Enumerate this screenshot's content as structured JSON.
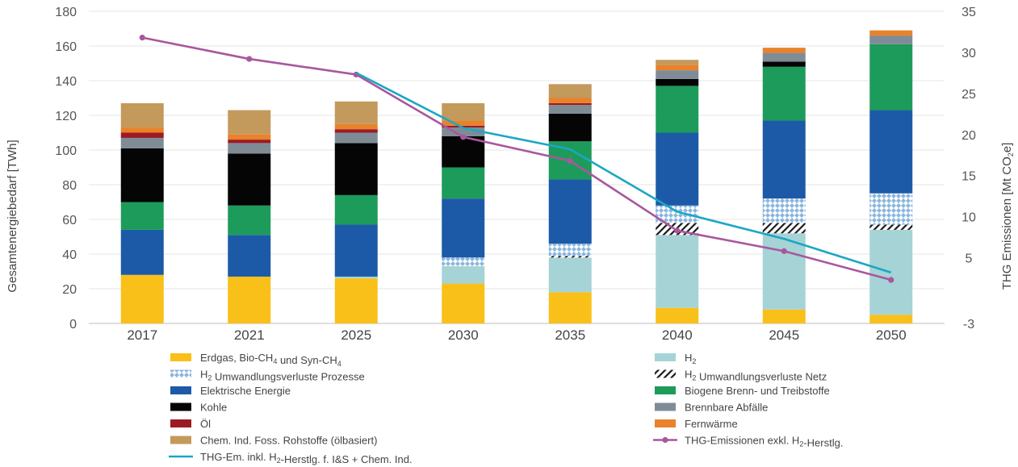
{
  "chart_data": {
    "type": "bar",
    "stacked": true,
    "categories": [
      "2017",
      "2021",
      "2025",
      "2030",
      "2035",
      "2040",
      "2045",
      "2050"
    ],
    "ylabel": "Gesamtenergiebedarf [TWh]",
    "ylim": [
      0,
      180
    ],
    "yticks": [
      0,
      20,
      40,
      60,
      80,
      100,
      120,
      140,
      160,
      180
    ],
    "y2label": "THG Emissionen [Mt CO2e]",
    "y2lim": [
      -3,
      35
    ],
    "y2ticks": [
      -3,
      5,
      10,
      15,
      20,
      25,
      30,
      35
    ],
    "y2ticklabels": [
      "-3",
      "5",
      "10",
      "15",
      "20",
      "25",
      "30",
      "35"
    ],
    "grid": true,
    "legend_position": "bottom",
    "series": [
      {
        "name": "Erdgas, Bio-CH4 und Syn-CH4",
        "color": "#F9C01A",
        "pattern": "solid",
        "values": [
          28,
          27,
          26,
          23,
          18,
          9,
          8,
          5
        ]
      },
      {
        "name": "H2",
        "color": "#A6D3D6",
        "pattern": "solid",
        "values": [
          0,
          0,
          1,
          10,
          20,
          42,
          44,
          49
        ]
      },
      {
        "name": "H2 Umwandlungsverluste Netz",
        "color": "#1a1a1a",
        "pattern": "hatch",
        "values": [
          0,
          0,
          0,
          0,
          1,
          7,
          6,
          3
        ]
      },
      {
        "name": "H2 Umwandlungsverluste Prozesse",
        "color": "#8AB6DD",
        "pattern": "dots",
        "values": [
          0,
          0,
          0,
          5,
          7,
          10,
          14,
          18
        ]
      },
      {
        "name": "Elektrische Energie",
        "color": "#1C5AA8",
        "pattern": "solid",
        "values": [
          26,
          24,
          30,
          34,
          37,
          42,
          45,
          48
        ]
      },
      {
        "name": "Biogene Brenn- und Treibstoffe",
        "color": "#1D9B5A",
        "pattern": "solid",
        "values": [
          16,
          17,
          17,
          18,
          22,
          27,
          31,
          38
        ]
      },
      {
        "name": "Kohle",
        "color": "#050505",
        "pattern": "solid",
        "values": [
          31,
          30,
          30,
          18,
          16,
          4,
          3,
          0
        ]
      },
      {
        "name": "Brennbare Abfälle",
        "color": "#7F8C96",
        "pattern": "solid",
        "values": [
          6,
          6,
          6,
          5,
          5,
          5,
          5,
          5
        ]
      },
      {
        "name": "Öl",
        "color": "#9C1B23",
        "pattern": "solid",
        "values": [
          3,
          2,
          2,
          1,
          1,
          0,
          0,
          0
        ]
      },
      {
        "name": "Fernwärme",
        "color": "#E9822A",
        "pattern": "solid",
        "values": [
          3,
          3,
          3,
          3,
          3,
          3,
          3,
          3
        ]
      },
      {
        "name": "Chem. Ind. Foss. Rohstoffe (ölbasiert)",
        "color": "#C4995C",
        "pattern": "solid",
        "values": [
          14,
          14,
          13,
          10,
          8,
          3,
          0,
          0
        ]
      }
    ],
    "lines": [
      {
        "name": "THG-Emissionen exkl. H2-Herstlg.",
        "color": "#A8579E",
        "markers": true,
        "axis": "right",
        "values": [
          31.8,
          29.2,
          27.3,
          19.7,
          16.8,
          8.3,
          5.8,
          2.3
        ]
      },
      {
        "name": "THG-Em. inkl. H2-Herstlg. f. I&S + Chem. Ind.",
        "color": "#1BA7C4",
        "markers": false,
        "axis": "right",
        "values": [
          null,
          null,
          27.5,
          20.8,
          18.2,
          10.6,
          7.3,
          3.2
        ]
      }
    ]
  },
  "legend": {
    "left": [
      {
        "series": "Erdgas, Bio-CH4 und Syn-CH4",
        "parts": [
          [
            "Erdgas, Bio-CH",
            ""
          ],
          [
            "4",
            "sub"
          ],
          [
            " und Syn-CH",
            ""
          ],
          [
            "4",
            "sub"
          ]
        ]
      },
      {
        "series": "H2 Umwandlungsverluste Prozesse",
        "parts": [
          [
            "H",
            ""
          ],
          [
            "2",
            "sub"
          ],
          [
            " Umwandlungsverluste Prozesse",
            ""
          ]
        ]
      },
      {
        "series": "Elektrische Energie",
        "parts": [
          [
            "Elektrische Energie",
            ""
          ]
        ]
      },
      {
        "series": "Kohle",
        "parts": [
          [
            "Kohle",
            ""
          ]
        ]
      },
      {
        "series": "Öl",
        "parts": [
          [
            "Öl",
            ""
          ]
        ]
      },
      {
        "series": "Chem. Ind. Foss. Rohstoffe (ölbasiert)",
        "parts": [
          [
            "Chem. Ind. Foss. Rohstoffe (ölbasiert)",
            ""
          ]
        ]
      },
      {
        "series": "THG-Em. inkl. H2-Herstlg. f. I&S + Chem. Ind.",
        "parts": [
          [
            "THG-Em. inkl. H",
            ""
          ],
          [
            "2",
            "sub"
          ],
          [
            "-Herstlg. f. I&S + Chem. Ind.",
            ""
          ]
        ]
      }
    ],
    "right": [
      {
        "series": "H2",
        "parts": [
          [
            "H",
            ""
          ],
          [
            "2",
            "sub"
          ]
        ]
      },
      {
        "series": "H2 Umwandlungsverluste Netz",
        "parts": [
          [
            "H",
            ""
          ],
          [
            "2",
            "sub"
          ],
          [
            " Umwandlungsverluste Netz",
            ""
          ]
        ]
      },
      {
        "series": "Biogene Brenn- und Treibstoffe",
        "parts": [
          [
            "Biogene Brenn- und Treibstoffe",
            ""
          ]
        ]
      },
      {
        "series": "Brennbare Abfälle",
        "parts": [
          [
            "Brennbare Abfälle",
            ""
          ]
        ]
      },
      {
        "series": "Fernwärme",
        "parts": [
          [
            "Fernwärme",
            ""
          ]
        ]
      },
      {
        "series": "THG-Emissionen exkl. H2-Herstlg.",
        "parts": [
          [
            "THG-Emissionen exkl. H",
            ""
          ],
          [
            "2",
            "sub"
          ],
          [
            "-Herstlg.",
            ""
          ]
        ]
      }
    ]
  }
}
